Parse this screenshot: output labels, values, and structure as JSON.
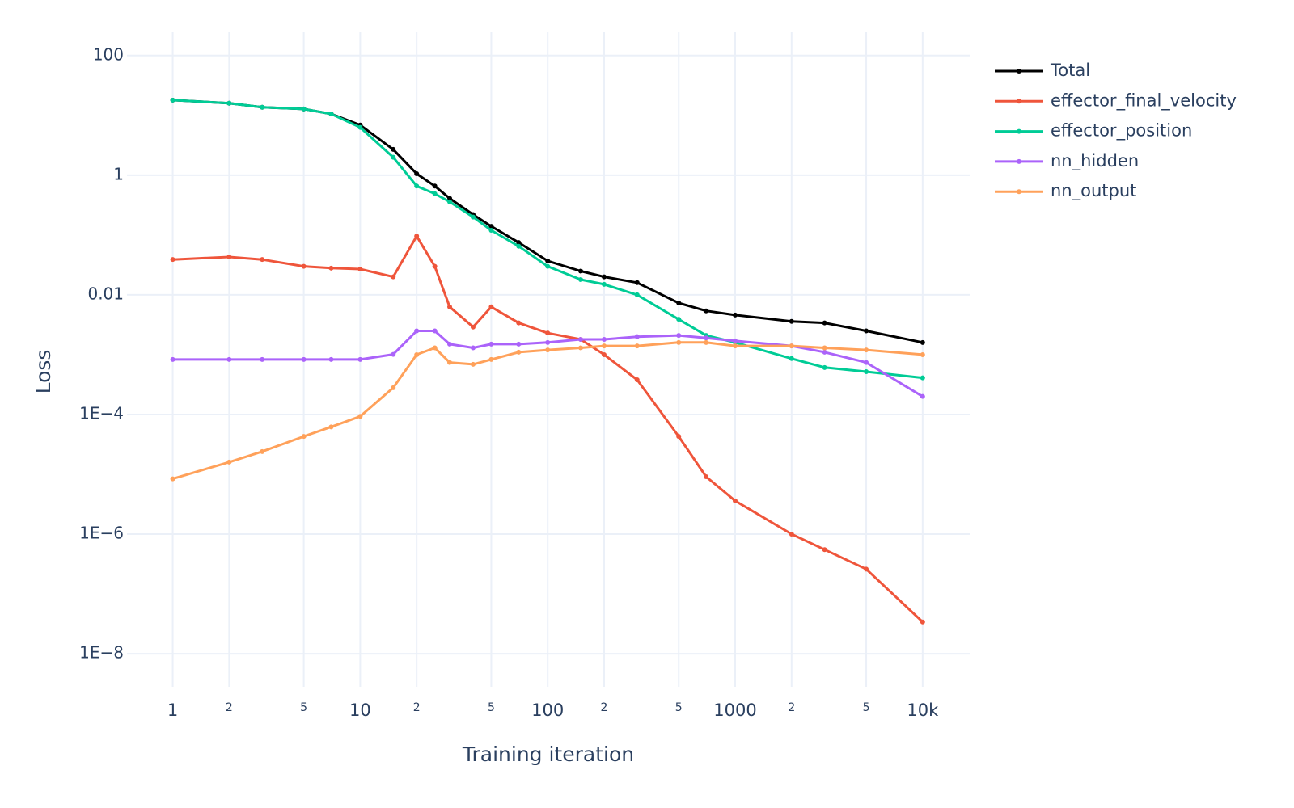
{
  "chart_data": {
    "type": "line",
    "x_label": "Training iteration",
    "y_label": "Loss",
    "log_x": true,
    "log_y": true,
    "grid": true,
    "legend_position": "right",
    "xlim": [
      0.57,
      18000
    ],
    "ylim": [
      2.8e-09,
      245
    ],
    "xticks": [
      1,
      {
        "value": 2,
        "label": "2"
      },
      {
        "value": 5,
        "label": "5"
      },
      10,
      {
        "value": 20,
        "label": "2"
      },
      {
        "value": 50,
        "label": "5"
      },
      100,
      {
        "value": 200,
        "label": "2"
      },
      {
        "value": 500,
        "label": "5"
      },
      1000,
      {
        "value": 2000,
        "label": "2"
      },
      {
        "value": 5000,
        "label": "5"
      },
      {
        "value": 10000,
        "label": "10k"
      }
    ],
    "yticks": [
      100,
      1,
      0.01,
      {
        "value": 0.0001,
        "label": "1E−4"
      },
      {
        "value": 1e-06,
        "label": "1E−6"
      },
      {
        "value": 1e-08,
        "label": "1E−8"
      }
    ],
    "x": [
      1,
      2,
      3,
      5,
      7,
      10,
      15,
      20,
      25,
      30,
      40,
      50,
      70,
      100,
      150,
      200,
      300,
      500,
      700,
      1000,
      2000,
      3000,
      5000,
      10000
    ],
    "series": [
      {
        "name": "Total",
        "color": "#000000",
        "values": [
          18,
          16,
          13.7,
          12.8,
          10.6,
          6.9,
          2.7,
          1.06,
          0.66,
          0.41,
          0.22,
          0.14,
          0.075,
          0.037,
          0.025,
          0.02,
          0.016,
          0.0073,
          0.0054,
          0.0046,
          0.0036,
          0.0034,
          0.0025,
          0.0016
        ]
      },
      {
        "name": "effector_final_velocity",
        "color": "#ef553b",
        "values": [
          0.039,
          0.043,
          0.039,
          0.03,
          0.028,
          0.027,
          0.02,
          0.096,
          0.03,
          0.0063,
          0.0029,
          0.0063,
          0.0034,
          0.0023,
          0.0018,
          0.001,
          0.00038,
          4.3e-05,
          9.1e-06,
          3.6e-06,
          1e-06,
          5.5e-07,
          2.6e-07,
          3.4e-08
        ]
      },
      {
        "name": "effector_position",
        "color": "#00cc96",
        "values": [
          18,
          16,
          13.7,
          12.8,
          10.6,
          6.3,
          2,
          0.66,
          0.49,
          0.36,
          0.2,
          0.12,
          0.065,
          0.03,
          0.018,
          0.015,
          0.01,
          0.0039,
          0.0021,
          0.0016,
          0.00086,
          0.00061,
          0.00052,
          0.00041
        ]
      },
      {
        "name": "nn_hidden",
        "color": "#ab63fa",
        "values": [
          0.00083,
          0.00083,
          0.00083,
          0.00083,
          0.00083,
          0.00083,
          0.00101,
          0.0025,
          0.0025,
          0.0015,
          0.0013,
          0.0015,
          0.0015,
          0.0016,
          0.0018,
          0.0018,
          0.002,
          0.0021,
          0.0019,
          0.0017,
          0.0014,
          0.0011,
          0.00074,
          0.0002
        ]
      },
      {
        "name": "nn_output",
        "color": "#ffa15a",
        "values": [
          8.4e-06,
          1.6e-05,
          2.4e-05,
          4.3e-05,
          6.2e-05,
          9.3e-05,
          0.00028,
          0.001,
          0.0013,
          0.00074,
          0.00069,
          0.00083,
          0.0011,
          0.0012,
          0.0013,
          0.0014,
          0.0014,
          0.0016,
          0.0016,
          0.0014,
          0.0014,
          0.0013,
          0.0012,
          0.001
        ]
      }
    ]
  }
}
